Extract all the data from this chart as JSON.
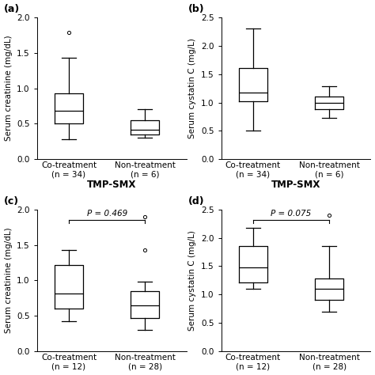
{
  "panels": {
    "a": {
      "label": "(a)",
      "ylabel": "Serum creatinine (mg/dL)",
      "xlabel": "TMP-SMX",
      "ylim": [
        0,
        2.0
      ],
      "yticks": [
        0,
        0.5,
        1.0,
        1.5,
        2.0
      ],
      "groups": [
        "Co-treatment\n(n = 34)",
        "Non-treatment\n(n = 6)"
      ],
      "boxes": [
        {
          "whislo": 0.28,
          "q1": 0.5,
          "med": 0.68,
          "q3": 0.93,
          "whishi": 1.43,
          "fliers": [
            1.79
          ]
        },
        {
          "whislo": 0.3,
          "q1": 0.35,
          "med": 0.42,
          "q3": 0.55,
          "whishi": 0.7,
          "fliers": []
        }
      ],
      "p_value": null,
      "p_bracket": false
    },
    "b": {
      "label": "(b)",
      "ylabel": "Serum cystatin C (mg/L)",
      "xlabel": "TMP-SMX",
      "ylim": [
        0,
        2.5
      ],
      "yticks": [
        0,
        0.5,
        1.0,
        1.5,
        2.0,
        2.5
      ],
      "groups": [
        "Co-treatment\n(n = 34)",
        "Non-treatment\n(n = 6)"
      ],
      "boxes": [
        {
          "whislo": 0.5,
          "q1": 1.02,
          "med": 1.18,
          "q3": 1.6,
          "whishi": 2.3,
          "fliers": []
        },
        {
          "whislo": 0.73,
          "q1": 0.88,
          "med": 1.0,
          "q3": 1.1,
          "whishi": 1.28,
          "fliers": []
        }
      ],
      "p_value": null,
      "p_bracket": false
    },
    "c": {
      "label": "(c)",
      "ylabel": "Serum creatinine (mg/dL)",
      "xlabel": "",
      "ylim": [
        0,
        2.0
      ],
      "yticks": [
        0,
        0.5,
        1.0,
        1.5,
        2.0
      ],
      "groups": [
        "Co-treatment\n(n = 12)",
        "Non-treatment\n(n = 28)"
      ],
      "boxes": [
        {
          "whislo": 0.42,
          "q1": 0.6,
          "med": 0.82,
          "q3": 1.22,
          "whishi": 1.43,
          "fliers": []
        },
        {
          "whislo": 0.3,
          "q1": 0.47,
          "med": 0.65,
          "q3": 0.85,
          "whishi": 0.98,
          "fliers": [
            1.43,
            1.9
          ]
        }
      ],
      "p_value": "P = 0.469",
      "p_bracket": true
    },
    "d": {
      "label": "(d)",
      "ylabel": "Serum cystatin C (mg/L)",
      "xlabel": "",
      "ylim": [
        0,
        2.5
      ],
      "yticks": [
        0,
        0.5,
        1.0,
        1.5,
        2.0,
        2.5
      ],
      "groups": [
        "Co-treatment\n(n = 12)",
        "Non-treatment\n(n = 28)"
      ],
      "boxes": [
        {
          "whislo": 1.1,
          "q1": 1.22,
          "med": 1.48,
          "q3": 1.85,
          "whishi": 2.18,
          "fliers": []
        },
        {
          "whislo": 0.7,
          "q1": 0.9,
          "med": 1.1,
          "q3": 1.28,
          "whishi": 1.85,
          "fliers": [
            2.4
          ]
        }
      ],
      "p_value": "P = 0.075",
      "p_bracket": true
    }
  },
  "positions": [
    1,
    2.2
  ],
  "box_width": 0.45,
  "xlim": [
    0.5,
    2.85
  ],
  "linewidth": 0.9,
  "flier_marker": "o",
  "flier_size": 3,
  "label_fontsize": 7.5,
  "tick_fontsize": 7.5,
  "panel_label_fontsize": 9,
  "xlabel_fontsize": 8.5
}
